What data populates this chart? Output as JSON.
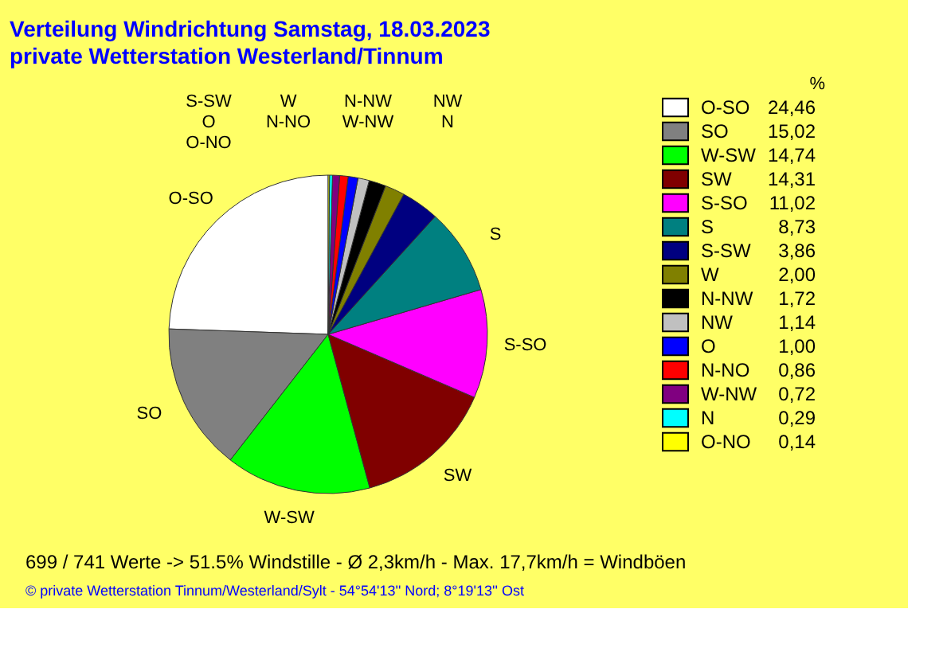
{
  "chart_data": {
    "type": "pie",
    "title": "Verteilung Windrichtung   Samstag, 18.03.2023",
    "subtitle": "private Wetterstation Westerland/Tinnum",
    "legend_title": "%",
    "legend": "right",
    "categories": [
      "O-SO",
      "SO",
      "W-SW",
      "SW",
      "S-SO",
      "S",
      "S-SW",
      "W",
      "N-NW",
      "NW",
      "O",
      "N-NO",
      "W-NW",
      "N",
      "O-NO"
    ],
    "values": [
      24.46,
      15.02,
      14.74,
      14.31,
      11.02,
      8.73,
      3.86,
      2.0,
      1.72,
      1.14,
      1.0,
      0.86,
      0.72,
      0.29,
      0.14
    ],
    "value_labels": [
      "24,46",
      "15,02",
      "14,74",
      "14,31",
      "11,02",
      "8,73",
      "3,86",
      "2,00",
      "1,72",
      "1,14",
      "1,00",
      "0,86",
      "0,72",
      "0,29",
      "0,14"
    ],
    "colors": [
      "#ffffff",
      "#808080",
      "#00ff00",
      "#800000",
      "#ff00ff",
      "#008080",
      "#000080",
      "#808000",
      "#000000",
      "#c0c0c0",
      "#0000ff",
      "#ff0000",
      "#800080",
      "#00ffff",
      "#ffff00"
    ],
    "annotations": [
      "699 / 741 Werte  -> 51.5% Windstille   -   Ø 2,3km/h  -  Max. 17,7km/h = Windböen",
      "© private Wetterstation Tinnum/Westerland/Sylt  -  54°54'13'' Nord; 8°19'13'' Ost"
    ]
  }
}
